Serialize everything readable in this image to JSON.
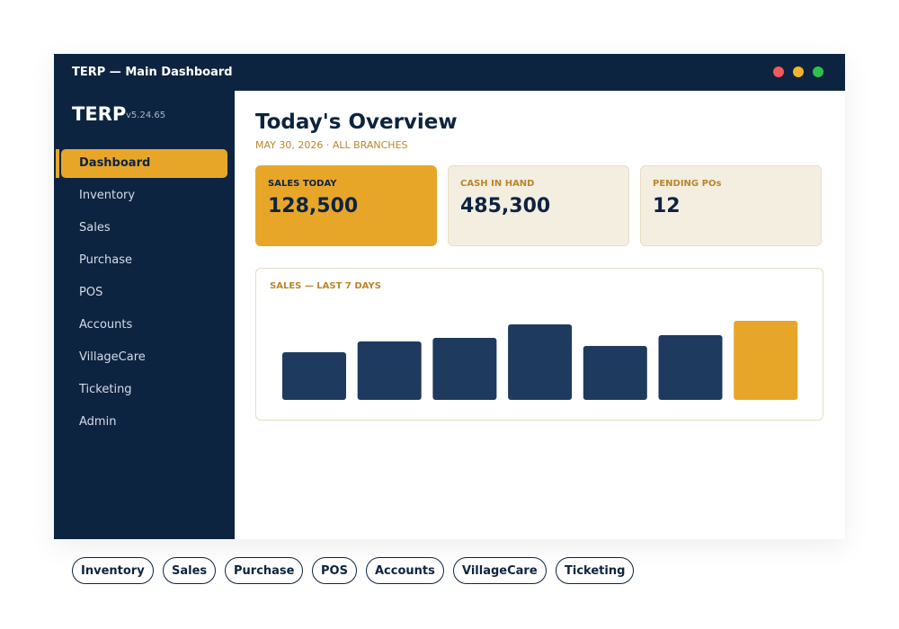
{
  "window": {
    "title": "TERP — Main Dashboard"
  },
  "sidebar": {
    "brand": "TERP",
    "version": "v5.24.65",
    "nav": [
      "Dashboard",
      "Inventory",
      "Sales",
      "Purchase",
      "POS",
      "Accounts",
      "VillageCare",
      "Ticketing",
      "Admin"
    ],
    "active": 0
  },
  "overview": {
    "title": "Today's Overview",
    "subtitle": "MAY 30, 2026 · ALL BRANCHES",
    "cards": [
      {
        "label": "SALES TODAY",
        "value": "128,500"
      },
      {
        "label": "CASH IN HAND",
        "value": "485,300"
      },
      {
        "label": "PENDING POs",
        "value": "12"
      }
    ]
  },
  "chart": {
    "title": "SALES — LAST 7 DAYS",
    "values": [
      53,
      65,
      69,
      84,
      60,
      72,
      88
    ],
    "colors": [
      "#1e3a5f",
      "#1e3a5f",
      "#1e3a5f",
      "#1e3a5f",
      "#1e3a5f",
      "#1e3a5f",
      "#e8a629"
    ]
  },
  "chips": [
    "Inventory",
    "Sales",
    "Purchase",
    "POS",
    "Accounts",
    "VillageCare",
    "Ticketing"
  ]
}
